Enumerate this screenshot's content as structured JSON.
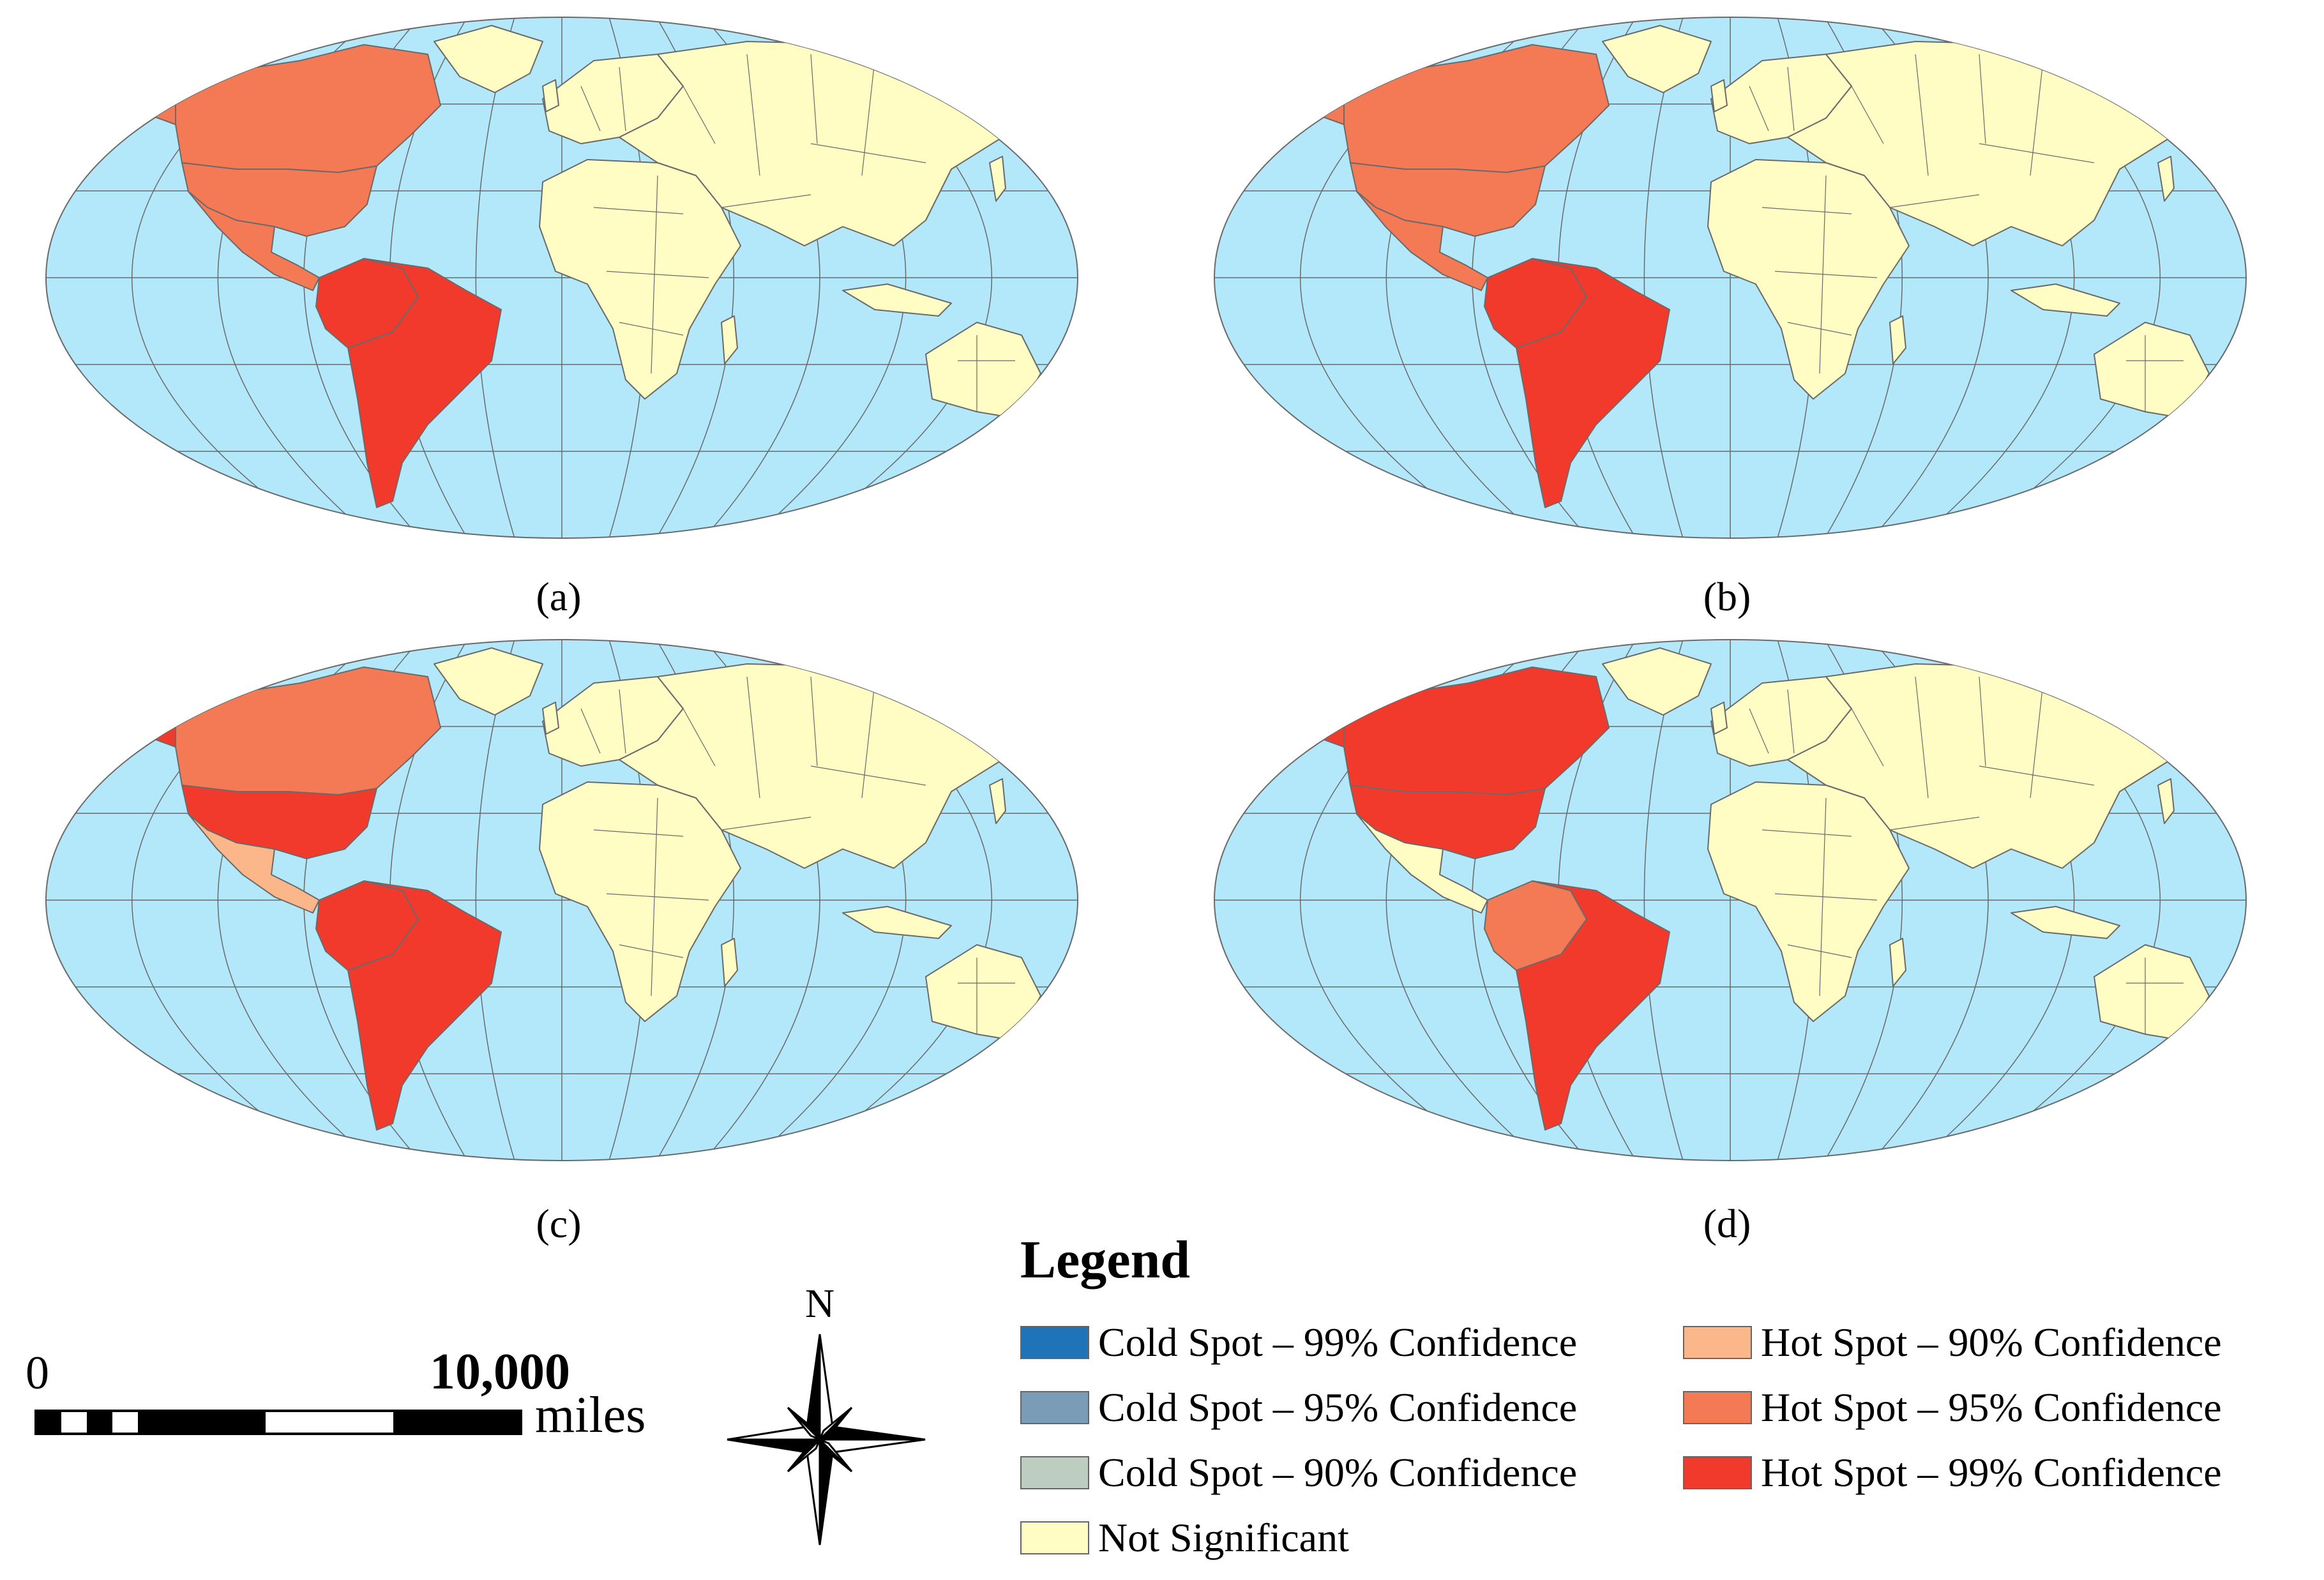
{
  "maps": [
    {
      "caption": "(a)",
      "north_america": "#f47a55",
      "usa": "#f47a55",
      "mexico_central": "#f47a55",
      "south_america_main": "#f23a2c",
      "south_america_nw": "#f23a2c",
      "alaska": "#f47a55"
    },
    {
      "caption": "(b)",
      "north_america": "#f47a55",
      "usa": "#f47a55",
      "mexico_central": "#f47a55",
      "south_america_main": "#f23a2c",
      "south_america_nw": "#f23a2c",
      "alaska": "#f47a55"
    },
    {
      "caption": "(c)",
      "north_america": "#f47a55",
      "usa": "#f23a2c",
      "mexico_central": "#fbb68a",
      "south_america_main": "#f23a2c",
      "south_america_nw": "#f23a2c",
      "alaska": "#f23a2c"
    },
    {
      "caption": "(d)",
      "north_america": "#f23a2c",
      "usa": "#f23a2c",
      "mexico_central": "#fffcc4",
      "south_america_main": "#f23a2c",
      "south_america_nw": "#f47a55",
      "alaska": "#f23a2c"
    }
  ],
  "colors": {
    "ocean": "#b3e8fb",
    "land": "#fffcc4",
    "graticule": "#6a6a6a",
    "border": "#6a6a6a"
  },
  "legend": {
    "title": "Legend",
    "items": [
      {
        "label": "Cold Spot – 99% Confidence",
        "color": "#1f73b8"
      },
      {
        "label": "Cold Spot – 95% Confidence",
        "color": "#7a9cb6"
      },
      {
        "label": "Cold Spot – 90% Confidence",
        "color": "#bdcdbf"
      },
      {
        "label": "Not Significant",
        "color": "#fffcc4"
      },
      {
        "label": "Hot Spot – 90% Confidence",
        "color": "#fbb68a"
      },
      {
        "label": "Hot Spot – 95% Confidence",
        "color": "#f47a55"
      },
      {
        "label": "Hot Spot – 99% Confidence",
        "color": "#f23a2c"
      }
    ]
  },
  "scale": {
    "start_label": "0",
    "end_label": "10,000",
    "unit": "miles"
  },
  "north": {
    "label": "N"
  }
}
